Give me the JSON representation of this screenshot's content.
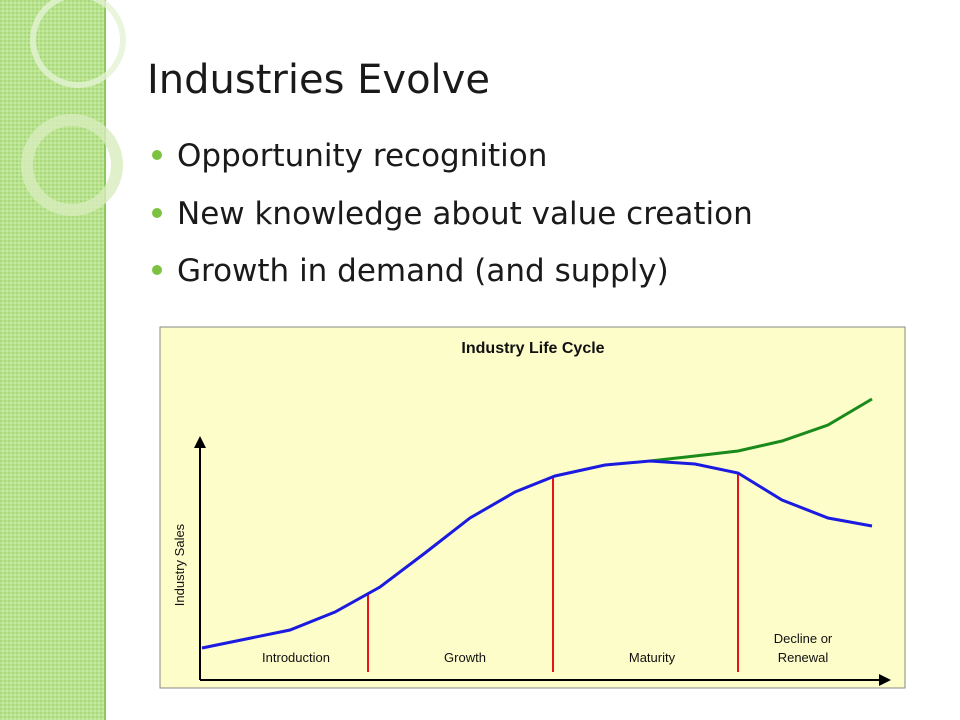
{
  "slide": {
    "title": "Industries Evolve",
    "bullets": [
      "Opportunity recognition",
      "New knowledge about value creation",
      "Growth in demand (and supply)"
    ]
  },
  "figure": {
    "title": "Industry Life Cycle",
    "y_axis_label": "Industry Sales",
    "stage_labels": [
      [
        "Introduction"
      ],
      [
        "Growth"
      ],
      [
        "Maturity"
      ],
      [
        "Decline or",
        "Renewal"
      ]
    ]
  }
}
